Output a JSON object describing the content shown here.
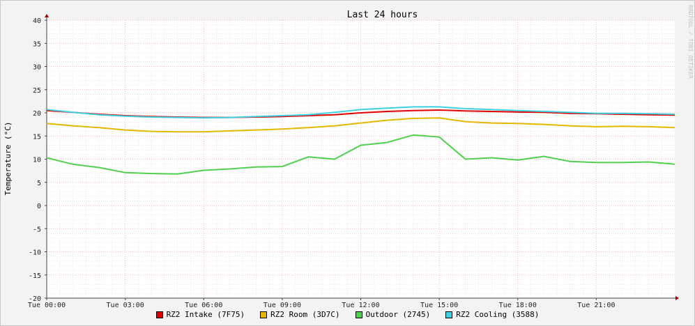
{
  "watermark": "RRDTOOL / TOBI OETIKER",
  "chart_data": {
    "type": "line",
    "title": "Last 24 hours",
    "xlabel": "",
    "ylabel": "Temperature (°C)",
    "ylim": [
      -20,
      40
    ],
    "yticks": [
      40,
      35,
      30,
      25,
      20,
      15,
      10,
      5,
      0,
      -5,
      -10,
      -15,
      -20
    ],
    "xlim": [
      "Tue 00:00",
      "Wed 00:00"
    ],
    "xticks": [
      "Tue 00:00",
      "Tue 03:00",
      "Tue 06:00",
      "Tue 09:00",
      "Tue 12:00",
      "Tue 15:00",
      "Tue 18:00",
      "Tue 21:00"
    ],
    "grid": true,
    "legend_position": "bottom",
    "x_hours": [
      0,
      1,
      2,
      3,
      4,
      5,
      6,
      7,
      8,
      9,
      10,
      11,
      12,
      13,
      14,
      15,
      16,
      17,
      18,
      19,
      20,
      21,
      22,
      23,
      24
    ],
    "series": [
      {
        "name": "RZ2 Intake (7F75)",
        "color": "#e00000",
        "values": [
          20.5,
          20.1,
          19.7,
          19.4,
          19.2,
          19.1,
          19.0,
          19.0,
          19.1,
          19.2,
          19.4,
          19.6,
          20.0,
          20.3,
          20.5,
          20.6,
          20.4,
          20.3,
          20.2,
          20.1,
          19.9,
          19.8,
          19.7,
          19.6,
          19.5
        ]
      },
      {
        "name": "RZ2 Room (3D7C)",
        "color": "#e4b800",
        "values": [
          17.7,
          17.2,
          16.8,
          16.3,
          16.0,
          15.9,
          15.9,
          16.1,
          16.3,
          16.5,
          16.8,
          17.2,
          17.8,
          18.4,
          18.8,
          18.9,
          18.1,
          17.8,
          17.7,
          17.5,
          17.2,
          17.0,
          17.1,
          17.0,
          16.8
        ]
      },
      {
        "name": "Outdoor (2745)",
        "color": "#4fd04f",
        "values": [
          10.3,
          8.9,
          8.2,
          7.1,
          6.9,
          6.8,
          7.6,
          7.9,
          8.3,
          8.4,
          10.5,
          10.0,
          13.0,
          13.6,
          15.2,
          14.8,
          10.0,
          10.3,
          9.8,
          10.6,
          9.5,
          9.3,
          9.3,
          9.4,
          8.9
        ]
      },
      {
        "name": "RZ2 Cooling (3588)",
        "color": "#40d0e0",
        "values": [
          20.7,
          20.1,
          19.6,
          19.3,
          19.1,
          19.0,
          18.9,
          19.0,
          19.2,
          19.4,
          19.6,
          20.1,
          20.7,
          21.0,
          21.3,
          21.3,
          20.9,
          20.7,
          20.5,
          20.3,
          20.1,
          19.9,
          19.9,
          19.8,
          19.7
        ]
      }
    ]
  }
}
